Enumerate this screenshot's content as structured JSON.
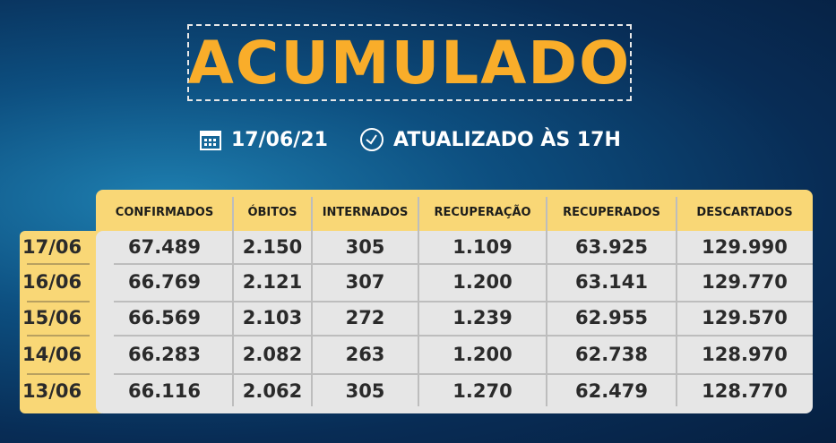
{
  "title": "ACUMULADO",
  "date": "17/06/21",
  "updated": "ATUALIZADO ÀS 17H",
  "icons": [
    "calendar-icon",
    "clock-icon"
  ],
  "colors": {
    "title": "#f9ad2a",
    "header_bg": "#f9d776",
    "body_bg": "#e6e6e6"
  },
  "table": {
    "headers": [
      "CONFIRMADOS",
      "ÓBITOS",
      "INTERNADOS",
      "RECUPERAÇÃO",
      "RECUPERADOS",
      "DESCARTADOS"
    ],
    "rows": [
      {
        "date": "17/06",
        "values": [
          "67.489",
          "2.150",
          "305",
          "1.109",
          "63.925",
          "129.990"
        ]
      },
      {
        "date": "16/06",
        "values": [
          "66.769",
          "2.121",
          "307",
          "1.200",
          "63.141",
          "129.770"
        ]
      },
      {
        "date": "15/06",
        "values": [
          "66.569",
          "2.103",
          "272",
          "1.239",
          "62.955",
          "129.570"
        ]
      },
      {
        "date": "14/06",
        "values": [
          "66.283",
          "2.082",
          "263",
          "1.200",
          "62.738",
          "128.970"
        ]
      },
      {
        "date": "13/06",
        "values": [
          "66.116",
          "2.062",
          "305",
          "1.270",
          "62.479",
          "128.770"
        ]
      }
    ]
  }
}
